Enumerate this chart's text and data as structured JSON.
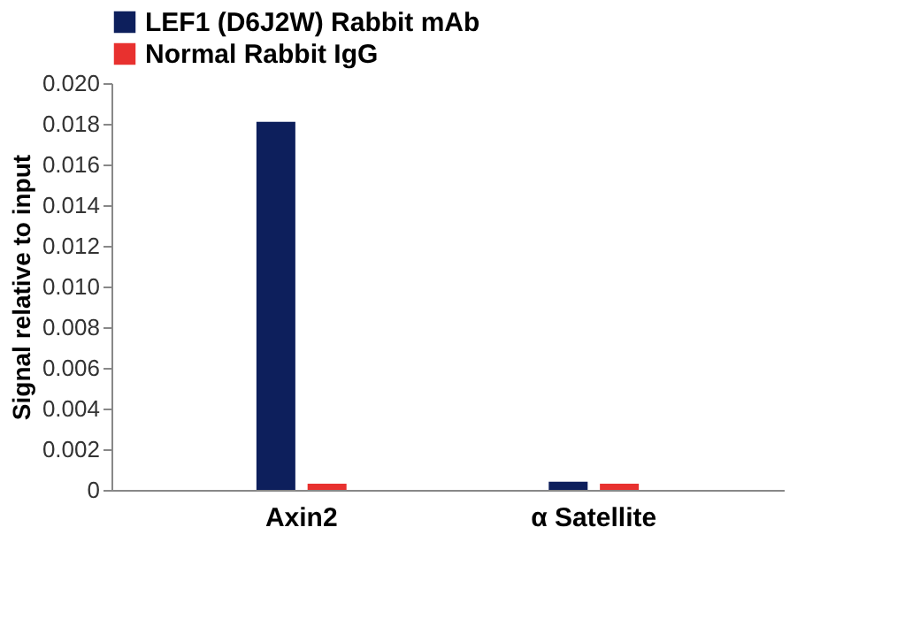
{
  "chart_data": {
    "type": "bar",
    "ylabel": "Signal relative to input",
    "categories": [
      "Axin2",
      "α Satellite"
    ],
    "series": [
      {
        "name": "LEF1 (D6J2W) Rabbit mAb",
        "color": "#0d1f5c",
        "values": [
          0.0181,
          0.0004
        ]
      },
      {
        "name": "Normal Rabbit IgG",
        "color": "#e8312f",
        "values": [
          0.0003,
          0.0003
        ]
      }
    ],
    "ylim": [
      0,
      0.02
    ],
    "yticks": [
      {
        "value": 0,
        "label": "0"
      },
      0.002,
      0.004,
      0.006,
      0.008,
      {
        "value": 0.01,
        "label": "0.010"
      },
      0.012,
      0.014,
      0.016,
      0.018,
      {
        "value": 0.02,
        "label": "0.020"
      }
    ],
    "grid": false,
    "legend": "top left"
  }
}
